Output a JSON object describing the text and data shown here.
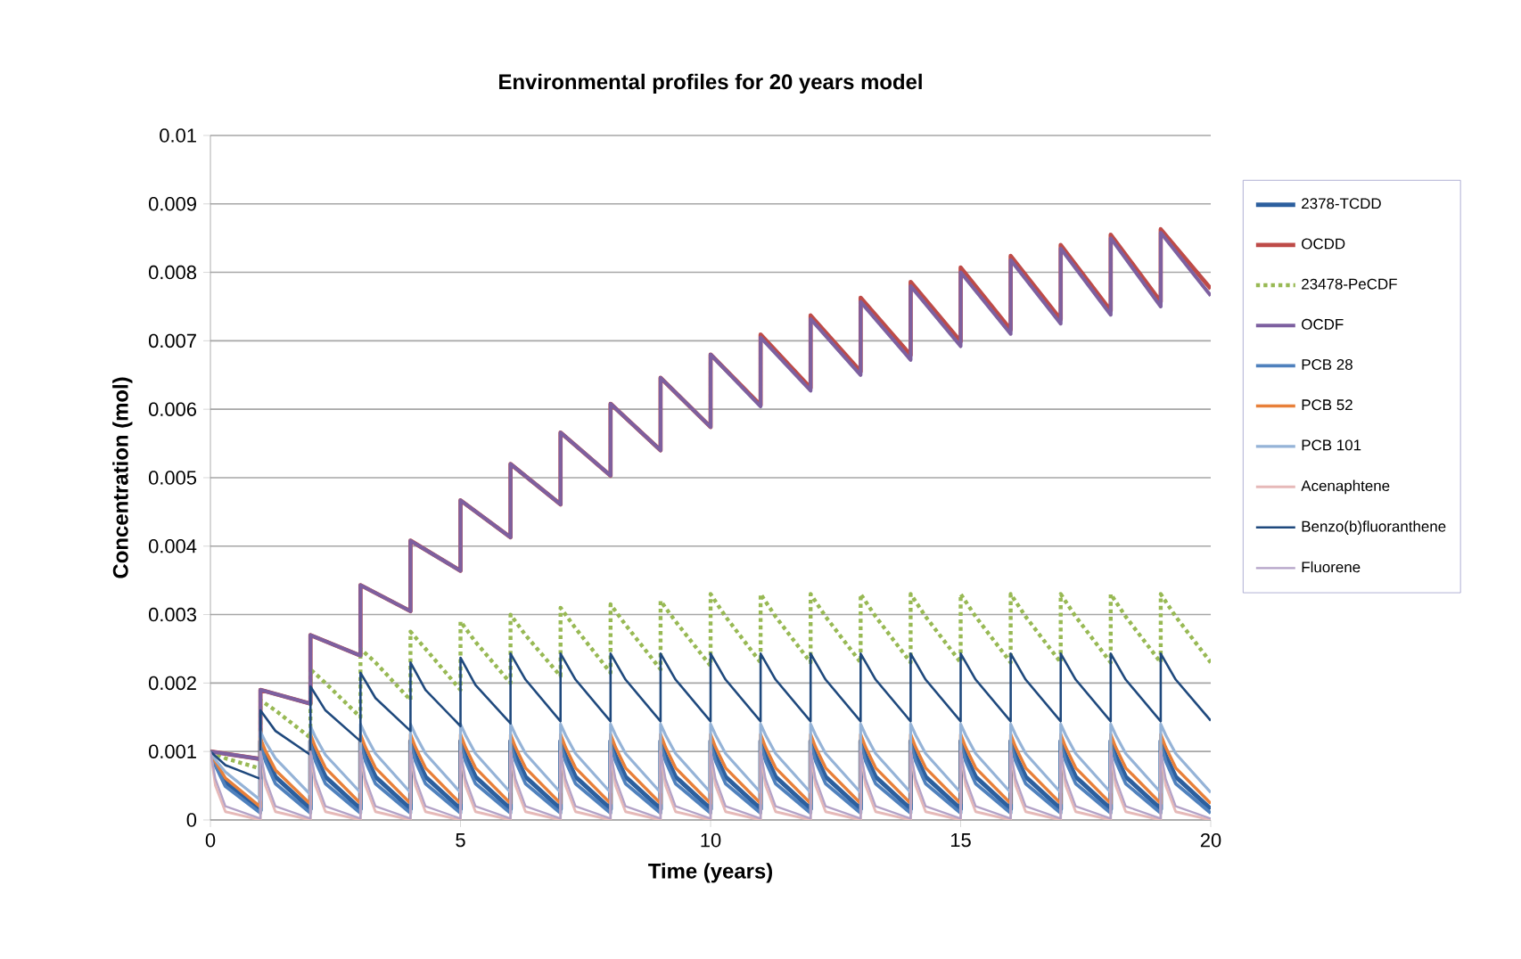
{
  "chart_data": {
    "type": "line",
    "title": "Environmental profiles for 20 years model",
    "xlabel": "Time (years)",
    "ylabel": "Concentration (mol)",
    "xlim": [
      0,
      20
    ],
    "ylim": [
      0,
      0.01
    ],
    "xticks": [
      0,
      5,
      10,
      15,
      20
    ],
    "yticks": [
      0,
      0.001,
      0.002,
      0.003,
      0.004,
      0.005,
      0.006,
      0.007,
      0.008,
      0.009,
      0.01
    ],
    "grid": "y",
    "legend": "right",
    "marker": "none",
    "line_style": "solid",
    "series": [
      {
        "name": "2378-TCDD",
        "color": "#2c5f9e",
        "x": [
          0,
          0.1,
          0.3,
          1,
          1,
          1.1,
          1.3,
          2,
          2,
          2.1,
          2.3,
          3,
          3,
          3.1,
          3.3,
          4,
          4,
          4.1,
          4.3,
          5,
          5,
          5.1,
          5.3,
          6,
          6,
          6.1,
          6.3,
          7,
          7,
          7.1,
          7.3,
          8,
          8,
          8.1,
          8.3,
          9,
          9,
          9.1,
          9.3,
          10,
          10,
          10.1,
          10.3,
          11,
          11,
          11.1,
          11.3,
          12,
          12,
          12.1,
          12.3,
          13,
          13,
          13.1,
          13.3,
          14,
          14,
          14.1,
          14.3,
          15,
          15,
          15.1,
          15.3,
          16,
          16,
          16.1,
          16.3,
          17,
          17,
          17.1,
          17.3,
          18,
          18,
          18.1,
          18.3,
          19,
          19,
          19.1,
          19.3,
          20
        ],
        "values": [
          0.001,
          0.00082,
          0.00055,
          0.00014,
          0.00115,
          0.00094,
          0.00063,
          0.00016,
          0.00115,
          0.00094,
          0.00063,
          0.00016,
          0.00115,
          0.00094,
          0.00063,
          0.00016,
          0.00115,
          0.00094,
          0.00063,
          0.00016,
          0.00115,
          0.00094,
          0.00063,
          0.00016,
          0.00115,
          0.00094,
          0.00063,
          0.00016,
          0.00115,
          0.00094,
          0.00063,
          0.00016,
          0.00115,
          0.00094,
          0.00063,
          0.00016,
          0.00115,
          0.00094,
          0.00063,
          0.00016,
          0.00115,
          0.00094,
          0.00063,
          0.00016,
          0.00115,
          0.00094,
          0.00063,
          0.00016,
          0.00115,
          0.00094,
          0.00063,
          0.00016,
          0.00115,
          0.00094,
          0.00063,
          0.00016,
          0.00115,
          0.00094,
          0.00063,
          0.00016,
          0.00115,
          0.00094,
          0.00063,
          0.00016,
          0.00115,
          0.00094,
          0.00063,
          0.00016,
          0.00115,
          0.00094,
          0.00063,
          0.00016,
          0.00115,
          0.00094,
          0.00063,
          0.00016,
          0.00115,
          0.00094,
          0.00063,
          0.00016
        ]
      },
      {
        "name": "OCDD",
        "color": "#be4b48",
        "x": [
          0,
          1,
          1,
          2,
          2,
          3,
          3,
          4,
          4,
          5,
          5,
          6,
          6,
          7,
          7,
          8,
          8,
          9,
          9,
          10,
          10,
          11,
          11,
          12,
          12,
          13,
          13,
          14,
          14,
          15,
          15,
          16,
          16,
          17,
          17,
          18,
          18,
          19,
          19,
          20
        ],
        "values": [
          0.001,
          0.00089,
          0.0019,
          0.0017,
          0.0027,
          0.0024,
          0.00343,
          0.00305,
          0.00408,
          0.00364,
          0.00467,
          0.00413,
          0.0052,
          0.00461,
          0.00566,
          0.00503,
          0.00608,
          0.0054,
          0.00646,
          0.00574,
          0.0068,
          0.00606,
          0.00709,
          0.00631,
          0.00737,
          0.00655,
          0.00763,
          0.00679,
          0.00786,
          0.00699,
          0.00807,
          0.00716,
          0.00824,
          0.00731,
          0.0084,
          0.00744,
          0.00855,
          0.00757,
          0.00863,
          0.00776
        ]
      },
      {
        "name": "23478-PeCDF",
        "color": "#98b954",
        "line_style": "dotted",
        "x": [
          0,
          0.3,
          1,
          1,
          1.3,
          2,
          2,
          2.3,
          3,
          3,
          3.3,
          4,
          4,
          4.3,
          5,
          5,
          5.3,
          6,
          6,
          6.3,
          7,
          7,
          7.3,
          8,
          8,
          8.3,
          9,
          9,
          9.3,
          10,
          10,
          10.3,
          11,
          11,
          11.3,
          12,
          12,
          12.3,
          13,
          13,
          13.3,
          14,
          14,
          14.3,
          15,
          15,
          15.3,
          16,
          16,
          16.3,
          17,
          17,
          17.3,
          18,
          18,
          18.3,
          19,
          19,
          19.3,
          20
        ],
        "values": [
          0.001,
          0.0009,
          0.00075,
          0.00175,
          0.0016,
          0.0012,
          0.0022,
          0.002,
          0.0015,
          0.0025,
          0.0023,
          0.00175,
          0.00275,
          0.0025,
          0.0019,
          0.0029,
          0.0026,
          0.002,
          0.003,
          0.0027,
          0.0021,
          0.0031,
          0.0028,
          0.00215,
          0.00315,
          0.00285,
          0.0022,
          0.0032,
          0.0029,
          0.00225,
          0.0033,
          0.00297,
          0.0023,
          0.0033,
          0.00297,
          0.0023,
          0.0033,
          0.00297,
          0.0023,
          0.0033,
          0.00297,
          0.0023,
          0.0033,
          0.00297,
          0.0023,
          0.0033,
          0.00297,
          0.0023,
          0.0033,
          0.00297,
          0.0023,
          0.0033,
          0.00297,
          0.0023,
          0.0033,
          0.00297,
          0.0023,
          0.0033,
          0.00297,
          0.0023
        ]
      },
      {
        "name": "OCDF",
        "color": "#7d60a0",
        "x": [
          0,
          1,
          1,
          2,
          2,
          3,
          3,
          4,
          4,
          5,
          5,
          6,
          6,
          7,
          7,
          8,
          8,
          9,
          9,
          10,
          10,
          11,
          11,
          12,
          12,
          13,
          13,
          14,
          14,
          15,
          15,
          16,
          16,
          17,
          17,
          18,
          18,
          19,
          19,
          20
        ],
        "values": [
          0.001,
          0.00089,
          0.0019,
          0.0017,
          0.0027,
          0.0024,
          0.00343,
          0.00305,
          0.00408,
          0.00364,
          0.00467,
          0.00413,
          0.0052,
          0.00461,
          0.00566,
          0.00503,
          0.00608,
          0.0054,
          0.00646,
          0.00574,
          0.0068,
          0.00604,
          0.00705,
          0.00627,
          0.00732,
          0.0065,
          0.00757,
          0.00672,
          0.0078,
          0.00692,
          0.008,
          0.0071,
          0.00818,
          0.00725,
          0.00835,
          0.00738,
          0.0085,
          0.0075,
          0.00858,
          0.00766
        ]
      },
      {
        "name": "PCB 28",
        "color": "#4f81bd",
        "x": [
          0,
          0.1,
          0.3,
          1,
          1,
          1.1,
          1.3,
          2,
          2,
          2.1,
          2.3,
          3,
          3,
          3.1,
          3.3,
          4,
          4,
          4.1,
          4.3,
          5,
          5,
          5.1,
          5.3,
          6,
          6,
          6.1,
          6.3,
          7,
          7,
          7.1,
          7.3,
          8,
          8,
          8.1,
          8.3,
          9,
          9,
          9.1,
          9.3,
          10,
          10,
          10.1,
          10.3,
          11,
          11,
          11.1,
          11.3,
          12,
          12,
          12.1,
          12.3,
          13,
          13,
          13.1,
          13.3,
          14,
          14,
          14.1,
          14.3,
          15,
          15,
          15.1,
          15.3,
          16,
          16,
          16.1,
          16.3,
          17,
          17,
          17.1,
          17.3,
          18,
          18,
          18.1,
          18.3,
          19,
          19,
          19.1,
          19.3,
          20
        ],
        "values": [
          0.001,
          0.00079,
          0.00049,
          0.0001,
          0.0011,
          0.00086,
          0.00053,
          0.0001,
          0.0011,
          0.00086,
          0.00053,
          0.0001,
          0.0011,
          0.00086,
          0.00053,
          0.0001,
          0.0011,
          0.00086,
          0.00053,
          0.0001,
          0.0011,
          0.00086,
          0.00053,
          0.0001,
          0.0011,
          0.00086,
          0.00053,
          0.0001,
          0.0011,
          0.00086,
          0.00053,
          0.0001,
          0.0011,
          0.00086,
          0.00053,
          0.0001,
          0.0011,
          0.00086,
          0.00053,
          0.0001,
          0.0011,
          0.00086,
          0.00053,
          0.0001,
          0.0011,
          0.00086,
          0.00053,
          0.0001,
          0.0011,
          0.00086,
          0.00053,
          0.0001,
          0.0011,
          0.00086,
          0.00053,
          0.0001,
          0.0011,
          0.00086,
          0.00053,
          0.0001,
          0.0011,
          0.00086,
          0.00053,
          0.0001,
          0.0011,
          0.00086,
          0.00053,
          0.0001,
          0.0011,
          0.00086,
          0.00053,
          0.0001,
          0.0011,
          0.00086,
          0.00053,
          0.0001,
          0.0011,
          0.00086,
          0.00053,
          0.0001
        ]
      },
      {
        "name": "PCB 52",
        "color": "#e8803a",
        "x": [
          0,
          0.1,
          0.3,
          1,
          1,
          1.1,
          1.3,
          2,
          2,
          2.1,
          2.3,
          3,
          3,
          3.1,
          3.3,
          4,
          4,
          4.1,
          4.3,
          5,
          5,
          5.1,
          5.3,
          6,
          6,
          6.1,
          6.3,
          7,
          7,
          7.1,
          7.3,
          8,
          8,
          8.1,
          8.3,
          9,
          9,
          9.1,
          9.3,
          10,
          10,
          10.1,
          10.3,
          11,
          11,
          11.1,
          11.3,
          12,
          12,
          12.1,
          12.3,
          13,
          13,
          13.1,
          13.3,
          14,
          14,
          14.1,
          14.3,
          15,
          15,
          15.1,
          15.3,
          16,
          16,
          16.1,
          16.3,
          17,
          17,
          17.1,
          17.3,
          18,
          18,
          18.1,
          18.3,
          19,
          19,
          19.1,
          19.3,
          20
        ],
        "values": [
          0.001,
          0.00085,
          0.00061,
          0.00019,
          0.00119,
          0.00101,
          0.00073,
          0.00023,
          0.00125,
          0.00106,
          0.00076,
          0.00024,
          0.00125,
          0.00106,
          0.00076,
          0.00024,
          0.00125,
          0.00106,
          0.00076,
          0.00024,
          0.00125,
          0.00106,
          0.00076,
          0.00024,
          0.00125,
          0.00106,
          0.00076,
          0.00024,
          0.00125,
          0.00106,
          0.00076,
          0.00024,
          0.00125,
          0.00106,
          0.00076,
          0.00024,
          0.00125,
          0.00106,
          0.00076,
          0.00024,
          0.00125,
          0.00106,
          0.00076,
          0.00024,
          0.00125,
          0.00106,
          0.00076,
          0.00024,
          0.00125,
          0.00106,
          0.00076,
          0.00024,
          0.00125,
          0.00106,
          0.00076,
          0.00024,
          0.00125,
          0.00106,
          0.00076,
          0.00024,
          0.00125,
          0.00106,
          0.00076,
          0.00024,
          0.00125,
          0.00106,
          0.00076,
          0.00024,
          0.00125,
          0.00106,
          0.00076,
          0.00024,
          0.00125,
          0.00106,
          0.00076,
          0.00024,
          0.00125,
          0.00106,
          0.00076,
          0.00024
        ]
      },
      {
        "name": "PCB 101",
        "color": "#95b3d7",
        "x": [
          0,
          0.1,
          0.3,
          1,
          1,
          1.1,
          1.3,
          2,
          2,
          2.1,
          2.3,
          3,
          3,
          3.1,
          3.3,
          4,
          4,
          4.1,
          4.3,
          5,
          5,
          5.1,
          5.3,
          6,
          6,
          6.1,
          6.3,
          7,
          7,
          7.1,
          7.3,
          8,
          8,
          8.1,
          8.3,
          9,
          9,
          9.1,
          9.3,
          10,
          10,
          10.1,
          10.3,
          11,
          11,
          11.1,
          11.3,
          12,
          12,
          12.1,
          12.3,
          13,
          13,
          13.1,
          13.3,
          14,
          14,
          14.1,
          14.3,
          15,
          15,
          15.1,
          15.3,
          16,
          16,
          16.1,
          16.3,
          17,
          17,
          17.1,
          17.3,
          18,
          18,
          18.1,
          18.3,
          19,
          19,
          19.1,
          19.3,
          20
        ],
        "values": [
          0.001,
          0.00088,
          0.0007,
          0.00029,
          0.00129,
          0.00114,
          0.0009,
          0.00037,
          0.00137,
          0.00121,
          0.00095,
          0.0004,
          0.0014,
          0.00124,
          0.00097,
          0.0004,
          0.0014,
          0.00124,
          0.00097,
          0.0004,
          0.0014,
          0.00124,
          0.00097,
          0.0004,
          0.0014,
          0.00124,
          0.00097,
          0.0004,
          0.0014,
          0.00124,
          0.00097,
          0.0004,
          0.0014,
          0.00124,
          0.00097,
          0.0004,
          0.0014,
          0.00124,
          0.00097,
          0.0004,
          0.0014,
          0.00124,
          0.00097,
          0.0004,
          0.0014,
          0.00124,
          0.00097,
          0.0004,
          0.0014,
          0.00124,
          0.00097,
          0.0004,
          0.0014,
          0.00124,
          0.00097,
          0.0004,
          0.0014,
          0.00124,
          0.00097,
          0.0004,
          0.0014,
          0.00124,
          0.00097,
          0.0004,
          0.0014,
          0.00124,
          0.00097,
          0.0004,
          0.0014,
          0.00124,
          0.00097,
          0.0004,
          0.0014,
          0.00124,
          0.00097,
          0.0004,
          0.0014,
          0.00124,
          0.00097,
          0.0004
        ]
      },
      {
        "name": "Acenaphtene",
        "color": "#e6b9b8",
        "x": [
          0,
          0.1,
          0.3,
          1,
          1,
          1.1,
          1.3,
          2,
          2,
          2.1,
          2.3,
          3,
          3,
          3.1,
          3.3,
          4,
          4,
          4.1,
          4.3,
          5,
          5,
          5.1,
          5.3,
          6,
          6,
          6.1,
          6.3,
          7,
          7,
          7.1,
          7.3,
          8,
          8,
          8.1,
          8.3,
          9,
          9,
          9.1,
          9.3,
          10,
          10,
          10.1,
          10.3,
          11,
          11,
          11.1,
          11.3,
          12,
          12,
          12.1,
          12.3,
          13,
          13,
          13.1,
          13.3,
          14,
          14,
          14.1,
          14.3,
          15,
          15,
          15.1,
          15.3,
          16,
          16,
          16.1,
          16.3,
          17,
          17,
          17.1,
          17.3,
          18,
          18,
          18.1,
          18.3,
          19,
          19,
          19.1,
          19.3,
          20
        ],
        "values": [
          0.001,
          0.0005,
          0.00012,
          0,
          0.001,
          0.0005,
          0.00012,
          0,
          0.001,
          0.0005,
          0.00012,
          0,
          0.001,
          0.0005,
          0.00012,
          0,
          0.001,
          0.0005,
          0.00012,
          0,
          0.001,
          0.0005,
          0.00012,
          0,
          0.001,
          0.0005,
          0.00012,
          0,
          0.001,
          0.0005,
          0.00012,
          0,
          0.001,
          0.0005,
          0.00012,
          0,
          0.001,
          0.0005,
          0.00012,
          0,
          0.001,
          0.0005,
          0.00012,
          0,
          0.001,
          0.0005,
          0.00012,
          0,
          0.001,
          0.0005,
          0.00012,
          0,
          0.001,
          0.0005,
          0.00012,
          0,
          0.001,
          0.0005,
          0.00012,
          0,
          0.001,
          0.0005,
          0.00012,
          0,
          0.001,
          0.0005,
          0.00012,
          0,
          0.001,
          0.0005,
          0.00012,
          0,
          0.001,
          0.0005,
          0.00012,
          0,
          0.001,
          0.0005,
          0.00012,
          0
        ]
      },
      {
        "name": "Benzo(b)fluoranthene",
        "color": "#1f497d",
        "x": [
          0,
          0.3,
          1,
          1,
          1.3,
          2,
          2,
          2.3,
          3,
          3,
          3.3,
          4,
          4,
          4.3,
          5,
          5,
          5.3,
          6,
          6,
          6.3,
          7,
          7,
          7.3,
          8,
          8,
          8.3,
          9,
          9,
          9.3,
          10,
          10,
          10.3,
          11,
          11,
          11.3,
          12,
          12,
          12.3,
          13,
          13,
          13.3,
          14,
          14,
          14.3,
          15,
          15,
          15.3,
          16,
          16,
          16.3,
          17,
          17,
          17.3,
          18,
          18,
          18.3,
          19,
          19,
          19.3,
          20
        ],
        "values": [
          0.001,
          0.0008,
          0.0006,
          0.0016,
          0.0013,
          0.00095,
          0.00195,
          0.0016,
          0.00115,
          0.00215,
          0.00178,
          0.0013,
          0.0023,
          0.0019,
          0.00137,
          0.00237,
          0.00197,
          0.00141,
          0.00243,
          0.00205,
          0.00144,
          0.00243,
          0.00205,
          0.00144,
          0.00243,
          0.00205,
          0.00144,
          0.00243,
          0.00205,
          0.00144,
          0.00243,
          0.00205,
          0.00144,
          0.00243,
          0.00205,
          0.00144,
          0.00243,
          0.00205,
          0.00144,
          0.00243,
          0.00205,
          0.00144,
          0.00243,
          0.00205,
          0.00144,
          0.00243,
          0.00205,
          0.00144,
          0.00243,
          0.00205,
          0.00144,
          0.00243,
          0.00205,
          0.00144,
          0.00243,
          0.00205,
          0.00144,
          0.00243,
          0.00205,
          0.00145
        ]
      },
      {
        "name": "Fluorene",
        "color": "#b3a2c7",
        "x": [
          0,
          0.1,
          0.3,
          1,
          1,
          1.1,
          1.3,
          2,
          2,
          2.1,
          2.3,
          3,
          3,
          3.1,
          3.3,
          4,
          4,
          4.1,
          4.3,
          5,
          5,
          5.1,
          5.3,
          6,
          6,
          6.1,
          6.3,
          7,
          7,
          7.1,
          7.3,
          8,
          8,
          8.1,
          8.3,
          9,
          9,
          9.1,
          9.3,
          10,
          10,
          10.1,
          10.3,
          11,
          11,
          11.1,
          11.3,
          12,
          12,
          12.1,
          12.3,
          13,
          13,
          13.1,
          13.3,
          14,
          14,
          14.1,
          14.3,
          15,
          15,
          15.1,
          15.3,
          16,
          16,
          16.1,
          16.3,
          17,
          17,
          17.1,
          17.3,
          18,
          18,
          18.1,
          18.3,
          19,
          19,
          19.1,
          19.3,
          20
        ],
        "values": [
          0.001,
          0.0006,
          0.0002,
          2e-05,
          0.001,
          0.0006,
          0.0002,
          2e-05,
          0.001,
          0.0006,
          0.0002,
          2e-05,
          0.001,
          0.0006,
          0.0002,
          2e-05,
          0.001,
          0.0006,
          0.0002,
          2e-05,
          0.001,
          0.0006,
          0.0002,
          2e-05,
          0.001,
          0.0006,
          0.0002,
          2e-05,
          0.001,
          0.0006,
          0.0002,
          2e-05,
          0.001,
          0.0006,
          0.0002,
          2e-05,
          0.001,
          0.0006,
          0.0002,
          2e-05,
          0.001,
          0.0006,
          0.0002,
          2e-05,
          0.001,
          0.0006,
          0.0002,
          2e-05,
          0.001,
          0.0006,
          0.0002,
          2e-05,
          0.001,
          0.0006,
          0.0002,
          2e-05,
          0.001,
          0.0006,
          0.0002,
          2e-05,
          0.001,
          0.0006,
          0.0002,
          2e-05,
          0.001,
          0.0006,
          0.0002,
          2e-05,
          0.001,
          0.0006,
          0.0002,
          2e-05,
          0.001,
          0.0006,
          0.0002,
          2e-05,
          0.001,
          0.0006,
          0.0002,
          2e-05
        ]
      }
    ]
  }
}
